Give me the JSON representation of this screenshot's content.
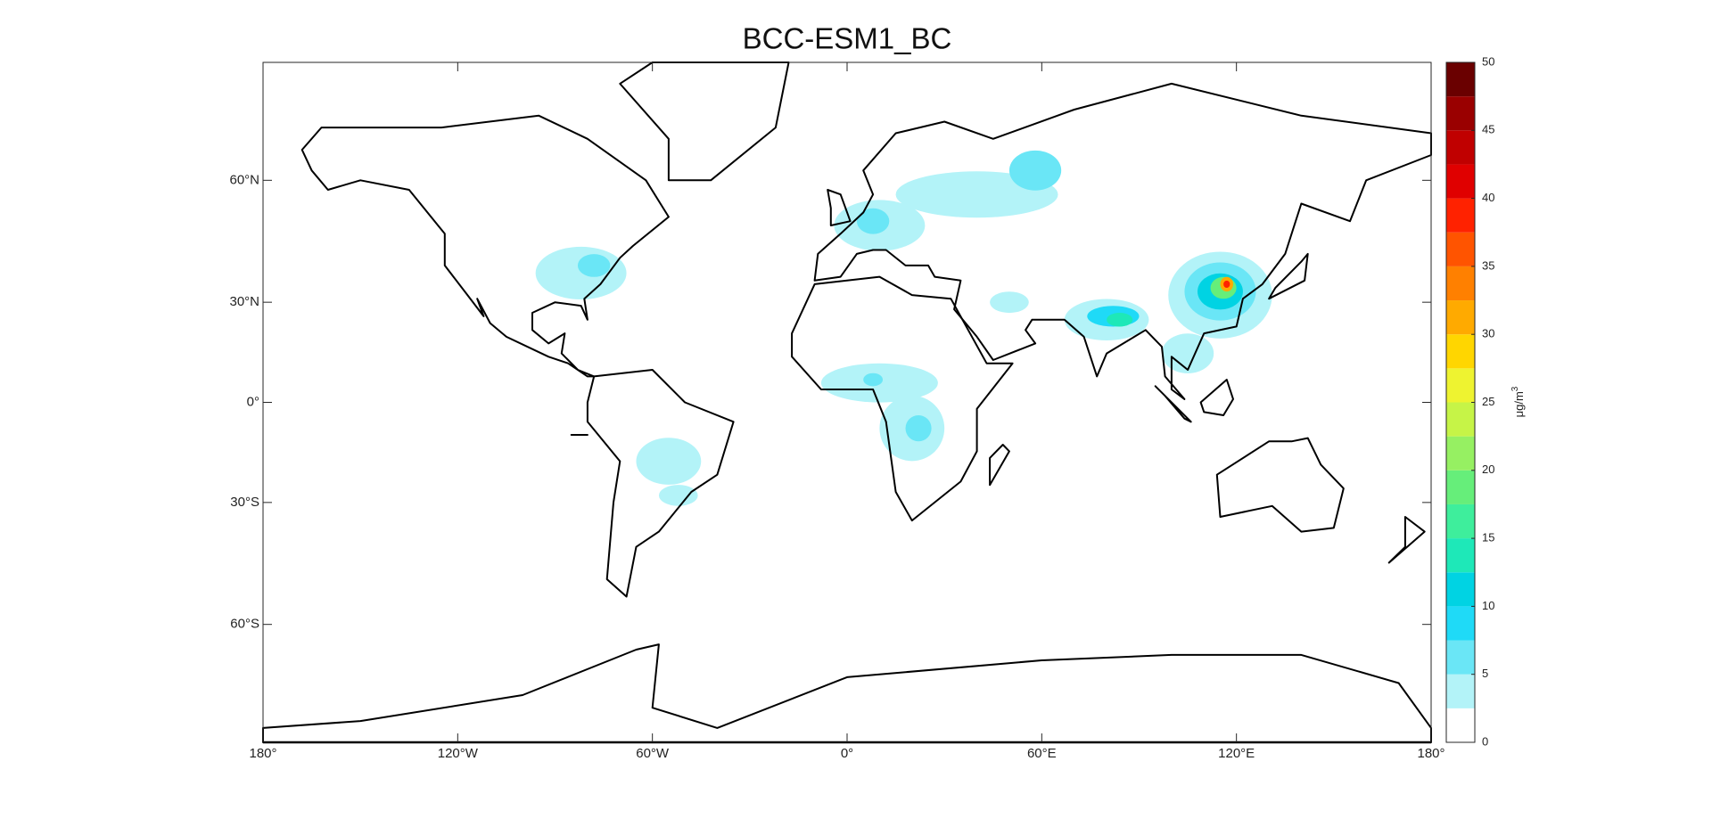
{
  "chart_data": {
    "type": "map",
    "title": "BCC-ESM1_BC",
    "xlim": [
      -180,
      180
    ],
    "ylim": [
      -80,
      80
    ],
    "xticks": [
      {
        "value": -180,
        "label": "180°"
      },
      {
        "value": -120,
        "label": "120°W"
      },
      {
        "value": -60,
        "label": "60°W"
      },
      {
        "value": 0,
        "label": "0°"
      },
      {
        "value": 60,
        "label": "60°E"
      },
      {
        "value": 120,
        "label": "120°E"
      },
      {
        "value": 180,
        "label": "180°"
      }
    ],
    "yticks": [
      {
        "value": -60,
        "label": "60°S"
      },
      {
        "value": -30,
        "label": "30°S"
      },
      {
        "value": 0,
        "label": "0°"
      },
      {
        "value": 30,
        "label": "30°N"
      },
      {
        "value": 60,
        "label": "60°N"
      }
    ],
    "colorbar": {
      "unit": "μg/m",
      "unit_exponent": "3",
      "levels": [
        0,
        2.5,
        5,
        7.5,
        10,
        12.5,
        15,
        17.5,
        20,
        22.5,
        25,
        27.5,
        30,
        32.5,
        35,
        37.5,
        40,
        42.5,
        45,
        47.5,
        50
      ],
      "colors": [
        "#ffffff",
        "#b3f3f8",
        "#6ae6f6",
        "#1fdaf7",
        "#00d3e3",
        "#1ee8b8",
        "#3eee9c",
        "#66ee7a",
        "#96f062",
        "#c6f447",
        "#eef330",
        "#ffd600",
        "#ffaa00",
        "#ff8000",
        "#ff5400",
        "#ff2200",
        "#e00000",
        "#c00000",
        "#9a0000",
        "#6a0000"
      ],
      "ticks": [
        0,
        5,
        10,
        15,
        20,
        25,
        30,
        35,
        40,
        45,
        50
      ]
    }
  }
}
